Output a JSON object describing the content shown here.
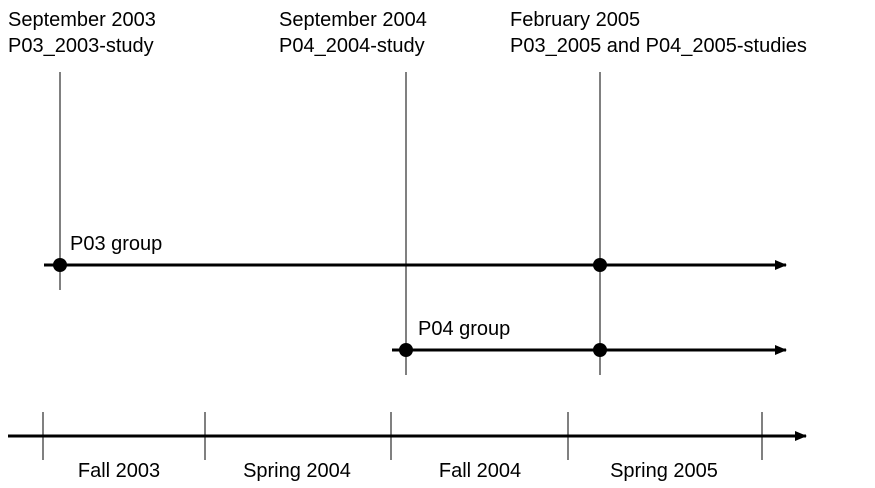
{
  "milestones": [
    {
      "date": "September 2003",
      "study": "P03_2003-study"
    },
    {
      "date": "September 2004",
      "study": "P04_2004-study"
    },
    {
      "date": "February 2005",
      "study": "P03_2005 and P04_2005-studies"
    }
  ],
  "groups": [
    {
      "label": "P03 group"
    },
    {
      "label": "P04 group"
    }
  ],
  "semesters": [
    "Fall 2003",
    "Spring 2004",
    "Fall 2004",
    "Spring 2005"
  ]
}
